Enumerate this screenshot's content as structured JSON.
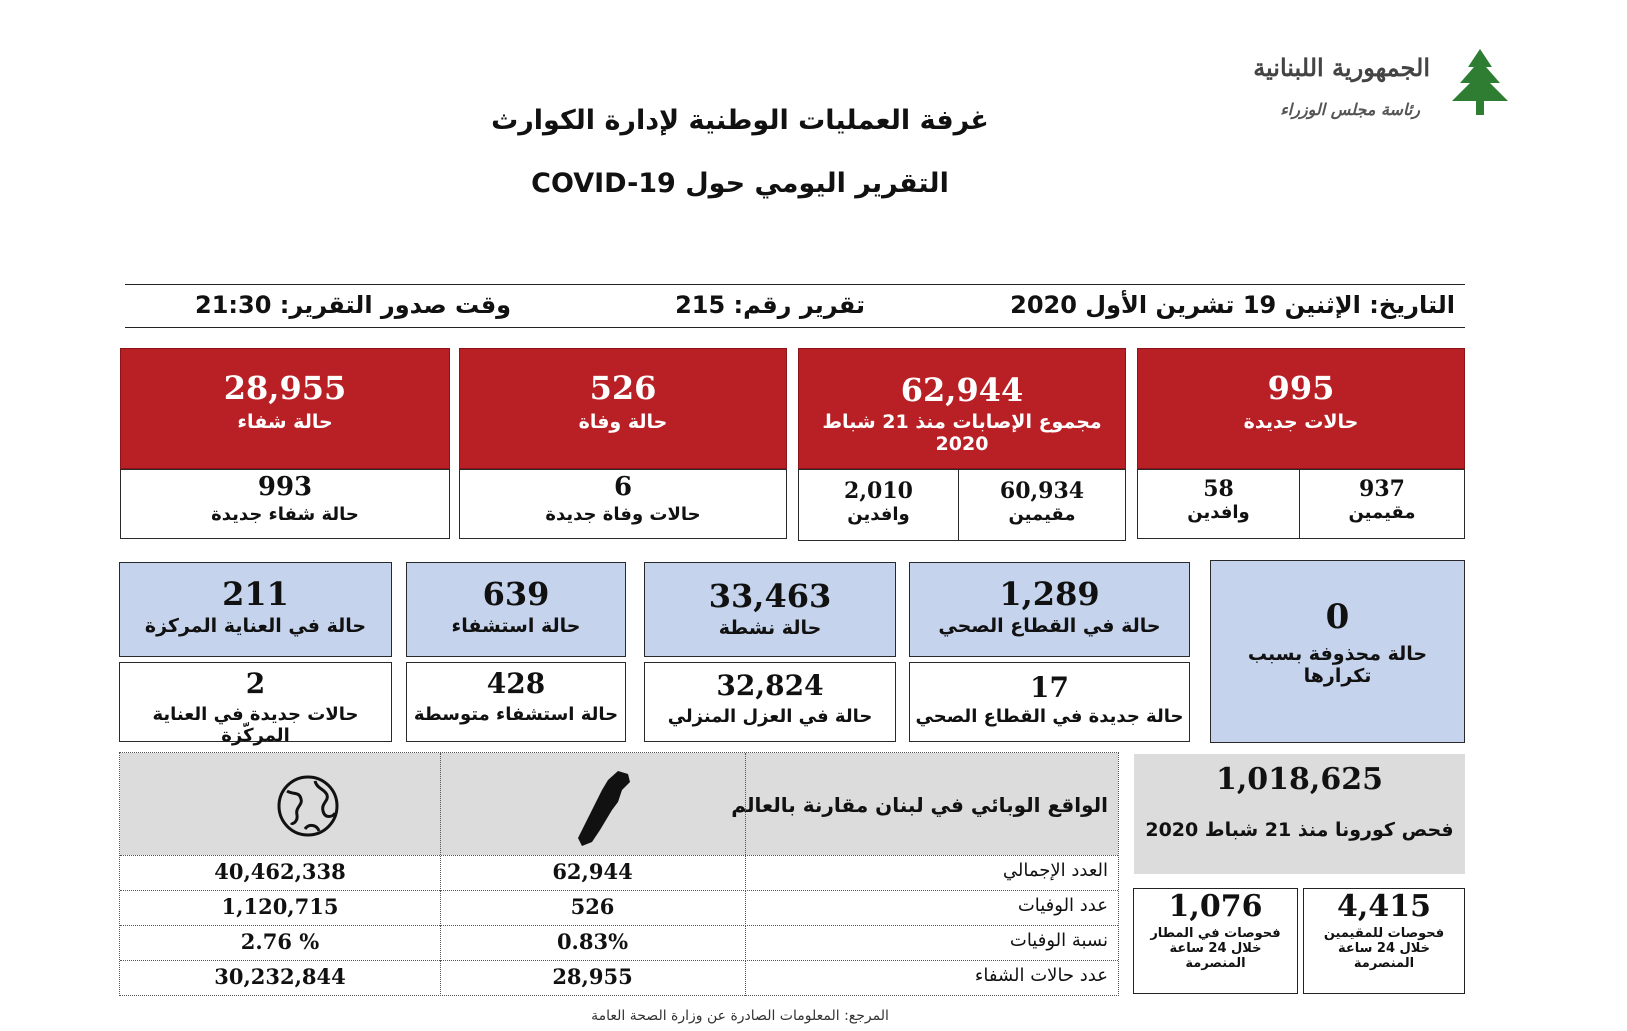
{
  "header": {
    "logo_text": "الجمهورية اللبنانية",
    "logo_subtext": "رئاسة مجلس الوزراء",
    "title": "غرفة العمليات الوطنية لإدارة الكوارث",
    "subtitle": "التقرير اليومي حول COVID-19"
  },
  "info_bar": {
    "date": "التاريخ: الإثنين 19 تشرين الأول 2020",
    "report_number": "تقرير رقم: 215",
    "issue_time": "وقت صدور التقرير: 21:30"
  },
  "row1": {
    "new_cases": {
      "value": "995",
      "label": "حالات جديدة"
    },
    "new_residents": {
      "value": "937",
      "label": "مقيمين"
    },
    "new_arrivals": {
      "value": "58",
      "label": "وافدين"
    },
    "total_cases": {
      "value": "62,944",
      "label": "مجموع الإصابات منذ 21 شباط 2020"
    },
    "total_residents": {
      "value": "60,934",
      "label": "مقيمين"
    },
    "total_arrivals": {
      "value": "2,010",
      "label": "وافدين"
    },
    "deaths": {
      "value": "526",
      "label": "حالة وفاة"
    },
    "new_deaths": {
      "value": "6",
      "label": "حالات وفاة جديدة"
    },
    "recovered": {
      "value": "28,955",
      "label": "حالة شفاء"
    },
    "new_recovered": {
      "value": "993",
      "label": "حالة شفاء جديدة"
    }
  },
  "row2": {
    "deleted": {
      "value": "0",
      "label": "حالة محذوفة بسبب تكرارها"
    },
    "health_sector": {
      "value": "1,289",
      "label": "حالة في القطاع الصحي"
    },
    "new_health_sector": {
      "value": "17",
      "label": "حالة جديدة في القطاع الصحي"
    },
    "active": {
      "value": "33,463",
      "label": "حالة نشطة"
    },
    "home_isolation": {
      "value": "32,824",
      "label": "حالة في العزل المنزلي"
    },
    "hospitalized": {
      "value": "639",
      "label": "حالة استشفاء"
    },
    "moderate_hospital": {
      "value": "428",
      "label": "حالة استشفاء متوسطة"
    },
    "icu": {
      "value": "211",
      "label": "حالة في العناية المركزة"
    },
    "new_icu": {
      "value": "2",
      "label": "حالات جديدة في العناية المركّزة"
    }
  },
  "tests": {
    "total": {
      "value": "1,018,625",
      "label": "فحص كورونا منذ 21 شباط 2020"
    },
    "residents": {
      "value": "4,415",
      "label1": "فحوصات للمقيمين",
      "label2": "خلال 24 ساعة",
      "label3": "المنصرمة"
    },
    "airport": {
      "value": "1,076",
      "label1": "فحوصات في المطار",
      "label2": "خلال 24 ساعة",
      "label3": "المنصرمة"
    }
  },
  "comparison": {
    "title": "الواقع الوبائي في لبنان مقارنة بالعالم",
    "lebanon_icon": "lebanon-map-icon",
    "world_icon": "globe-icon",
    "rows": [
      {
        "label": "العدد الإجمالي",
        "lebanon": "62,944",
        "world": "40,462,338"
      },
      {
        "label": "عدد الوفيات",
        "lebanon": "526",
        "world": "1,120,715"
      },
      {
        "label": "نسبة الوفيات",
        "lebanon": "0.83%",
        "world": "2.76 %"
      },
      {
        "label": "عدد حالات الشفاء",
        "lebanon": "28,955",
        "world": "30,232,844"
      }
    ]
  },
  "footer": {
    "source": "المرجع: المعلومات الصادرة عن وزارة الصحة العامة"
  },
  "colors": {
    "red": "#b92025",
    "blue": "#c5d3ec",
    "grey": "#dcdcdc"
  }
}
